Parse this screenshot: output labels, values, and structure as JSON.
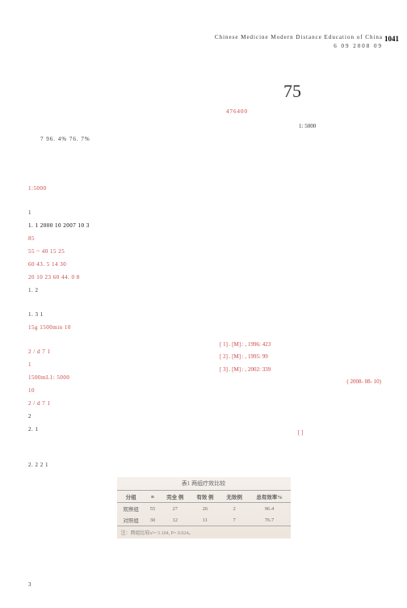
{
  "header": {
    "english_title": "Chinese Medicine Modern Distance Education of China",
    "issue_info": "6    09    2008    09",
    "page_number": "1041"
  },
  "title": {
    "main": "75",
    "subtitle": "476400",
    "affiliation": "1: 5000",
    "abstract": "7                                                        96. 4%                           76. 7%"
  },
  "body": {
    "intro": "1:5000",
    "s1": "1",
    "s1_1": "1. 1                                2000   10        2007   10                                                                                                                                             3",
    "s1_1b": "     85",
    "s1_1c": "                                        55          ~ 40         15         25",
    "s1_1d": "60                    43. 5                          14               30",
    "s1_1e": "20         10              23   60                44. 0                  8",
    "s1_2": "1. 2",
    "s1_3": "1. 3                                                           1",
    "s1_3b": "                    15g         1500min                       10",
    "s1_3c": "              2    / d    7         1",
    "s1_3d": "                                                                          1",
    "s1_3e": "                                    1500mL1: 5000",
    "s1_3f": "10",
    "s1_3g": "                                       2      / d      7       1",
    "s2": "2",
    "s2_1": "2. 1",
    "s2_2": "2. 2                        2                               1",
    "s3": "3"
  },
  "table": {
    "title": "表1  两组疗效比较",
    "headers": [
      "分组",
      "n",
      "完全 例",
      "有效 例",
      "无效例",
      "总有效率%"
    ],
    "rows": [
      [
        "观察组",
        "55",
        "27",
        "26",
        "2",
        "96.4"
      ],
      [
        "对照组",
        "30",
        "12",
        "11",
        "7",
        "76.7"
      ]
    ],
    "note": "注：两组比较x²= 5.104, P= 0.024。"
  },
  "refs": {
    "r1": "[ 1]         .                    [M]     :                              , 1996: 423",
    "r2": "[ 2]         .              [M]     :                        , 1995: 99",
    "r3": "[ 3]         .                         [M]     :                    , 2002: 339",
    "date": "(                     2008- 08- 10)"
  },
  "bottom_mark": "[         ]"
}
